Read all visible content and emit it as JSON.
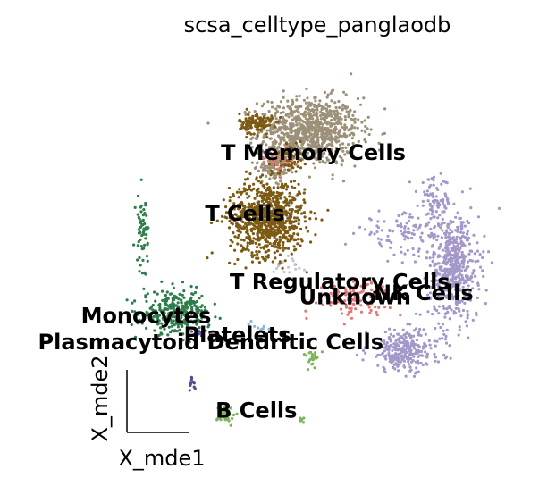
{
  "chart_data": {
    "type": "scatter",
    "title": "scsa_celltype_panglaodb",
    "xlabel": "X_mde1",
    "ylabel": "X_mde2",
    "xlim": [
      0,
      100
    ],
    "ylim": [
      0,
      100
    ],
    "grid": false,
    "legend": "on data",
    "series": [
      {
        "name": "T Memory Cells",
        "color": "#9c9178",
        "clusters": [
          {
            "cx": 49,
            "cy": 80,
            "rx": 12,
            "ry": 8,
            "n": 900
          },
          {
            "cx": 40,
            "cy": 71,
            "rx": 3.5,
            "ry": 5,
            "n": 110
          }
        ]
      },
      {
        "name": "T Cells",
        "color": "#7c5a13",
        "clusters": [
          {
            "cx": 38,
            "cy": 57,
            "rx": 9,
            "ry": 9,
            "n": 800
          },
          {
            "cx": 35,
            "cy": 82,
            "rx": 4,
            "ry": 2.5,
            "n": 130
          },
          {
            "cx": 44,
            "cy": 73,
            "rx": 3,
            "ry": 4,
            "n": 60
          }
        ]
      },
      {
        "name": "NK Cells",
        "color": "#a497c9",
        "clusters": [
          {
            "cx": 87,
            "cy": 44,
            "rx": 6,
            "ry": 13,
            "n": 500
          },
          {
            "cx": 74,
            "cy": 22,
            "rx": 9,
            "ry": 5,
            "n": 280
          },
          {
            "cx": 75,
            "cy": 53,
            "rx": 12,
            "ry": 5,
            "n": 120
          },
          {
            "cx": 82,
            "cy": 62,
            "rx": 4,
            "ry": 5,
            "n": 70
          }
        ]
      },
      {
        "name": "Monocytes",
        "color": "#2e7d4a",
        "clusters": [
          {
            "cx": 14,
            "cy": 32,
            "rx": 8,
            "ry": 5,
            "n": 300
          },
          {
            "cx": 5,
            "cy": 54,
            "rx": 1.5,
            "ry": 9,
            "n": 60
          }
        ]
      },
      {
        "name": "Unknown",
        "color": "#e47777",
        "clusters": [
          {
            "cx": 60,
            "cy": 36,
            "rx": 9,
            "ry": 4,
            "n": 130
          },
          {
            "cx": 40,
            "cy": 73,
            "rx": 4,
            "ry": 3,
            "n": 25
          }
        ]
      },
      {
        "name": "B Cells",
        "color": "#7cb65c",
        "clusters": [
          {
            "cx": 27,
            "cy": 5,
            "rx": 2,
            "ry": 2.5,
            "n": 35
          },
          {
            "cx": 50,
            "cy": 20,
            "rx": 2,
            "ry": 2,
            "n": 25
          },
          {
            "cx": 47,
            "cy": 4,
            "rx": 0.6,
            "ry": 1,
            "n": 8
          }
        ]
      },
      {
        "name": "Plasmacytoid Dendritic Cells",
        "color": "#5a4a96",
        "clusters": [
          {
            "cx": 18,
            "cy": 13,
            "rx": 0.8,
            "ry": 1.5,
            "n": 12
          },
          {
            "cx": 20,
            "cy": 27,
            "rx": 1.5,
            "ry": 1,
            "n": 10
          },
          {
            "cx": 38,
            "cy": 74,
            "rx": 1.5,
            "ry": 1,
            "n": 10
          }
        ]
      },
      {
        "name": "T Regulatory Cells",
        "color": "#c9c3d8",
        "clusters": [
          {
            "cx": 44,
            "cy": 44,
            "rx": 4,
            "ry": 3,
            "n": 15
          }
        ]
      },
      {
        "name": "Platelets",
        "color": "#8ab8d4",
        "clusters": [
          {
            "cx": 36,
            "cy": 28,
            "rx": 4,
            "ry": 2,
            "n": 10
          }
        ]
      }
    ],
    "annotations": [
      {
        "text": "T Memory Cells",
        "x": 50,
        "y": 74
      },
      {
        "text": "T Cells",
        "x": 32,
        "y": 58
      },
      {
        "text": "T Regulatory Cells",
        "x": 57,
        "y": 40
      },
      {
        "text": "Unknown",
        "x": 61,
        "y": 36
      },
      {
        "text": "NK Cells",
        "x": 79,
        "y": 37
      },
      {
        "text": "Monocytes",
        "x": 6,
        "y": 31
      },
      {
        "text": "Plasmacytoid Dendritic Cells",
        "x": 23,
        "y": 24
      },
      {
        "text": "Platelets",
        "x": 30,
        "y": 26
      },
      {
        "text": "B Cells",
        "x": 35,
        "y": 6
      }
    ]
  }
}
